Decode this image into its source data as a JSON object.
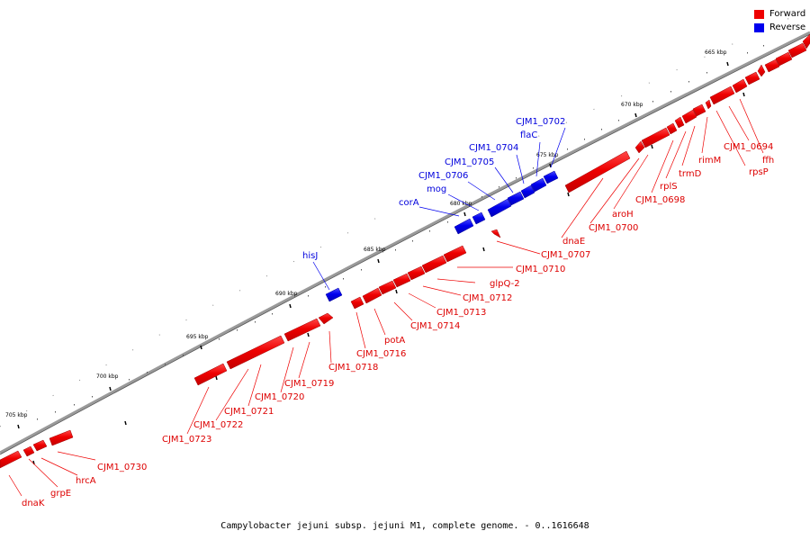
{
  "colors": {
    "forward": "#ee0000",
    "reverse": "#0000ee",
    "backbone": "#9a9a9a"
  },
  "legend": [
    {
      "label": "Forward",
      "color": "#ee0000"
    },
    {
      "label": "Reverse",
      "color": "#0000ee"
    }
  ],
  "caption": "Campylobacter jejuni subsp. jejuni M1, complete genome. - 0..1616648",
  "ticks": [
    "665 kbp",
    "670 kbp",
    "675 kbp",
    "680 kbp",
    "685 kbp",
    "690 kbp",
    "695 kbp",
    "700 kbp",
    "705 kbp"
  ],
  "genes": {
    "forward": [
      "dnaK",
      "grpE",
      "hrcA",
      "CJM1_0730",
      "CJM1_0723",
      "CJM1_0722",
      "CJM1_0721",
      "CJM1_0720",
      "CJM1_0719",
      "CJM1_0718",
      "CJM1_0716",
      "potA",
      "CJM1_0714",
      "CJM1_0713",
      "CJM1_0712",
      "glpQ-2",
      "CJM1_0710",
      "CJM1_0707",
      "dnaE",
      "CJM1_0700",
      "aroH",
      "CJM1_0698",
      "rplS",
      "trmD",
      "rimM",
      "CJM1_0694",
      "ffh",
      "rpsP"
    ],
    "reverse": [
      "hisJ",
      "corA",
      "mog",
      "CJM1_0706",
      "CJM1_0705",
      "CJM1_0704",
      "flaC",
      "CJM1_0702"
    ]
  }
}
